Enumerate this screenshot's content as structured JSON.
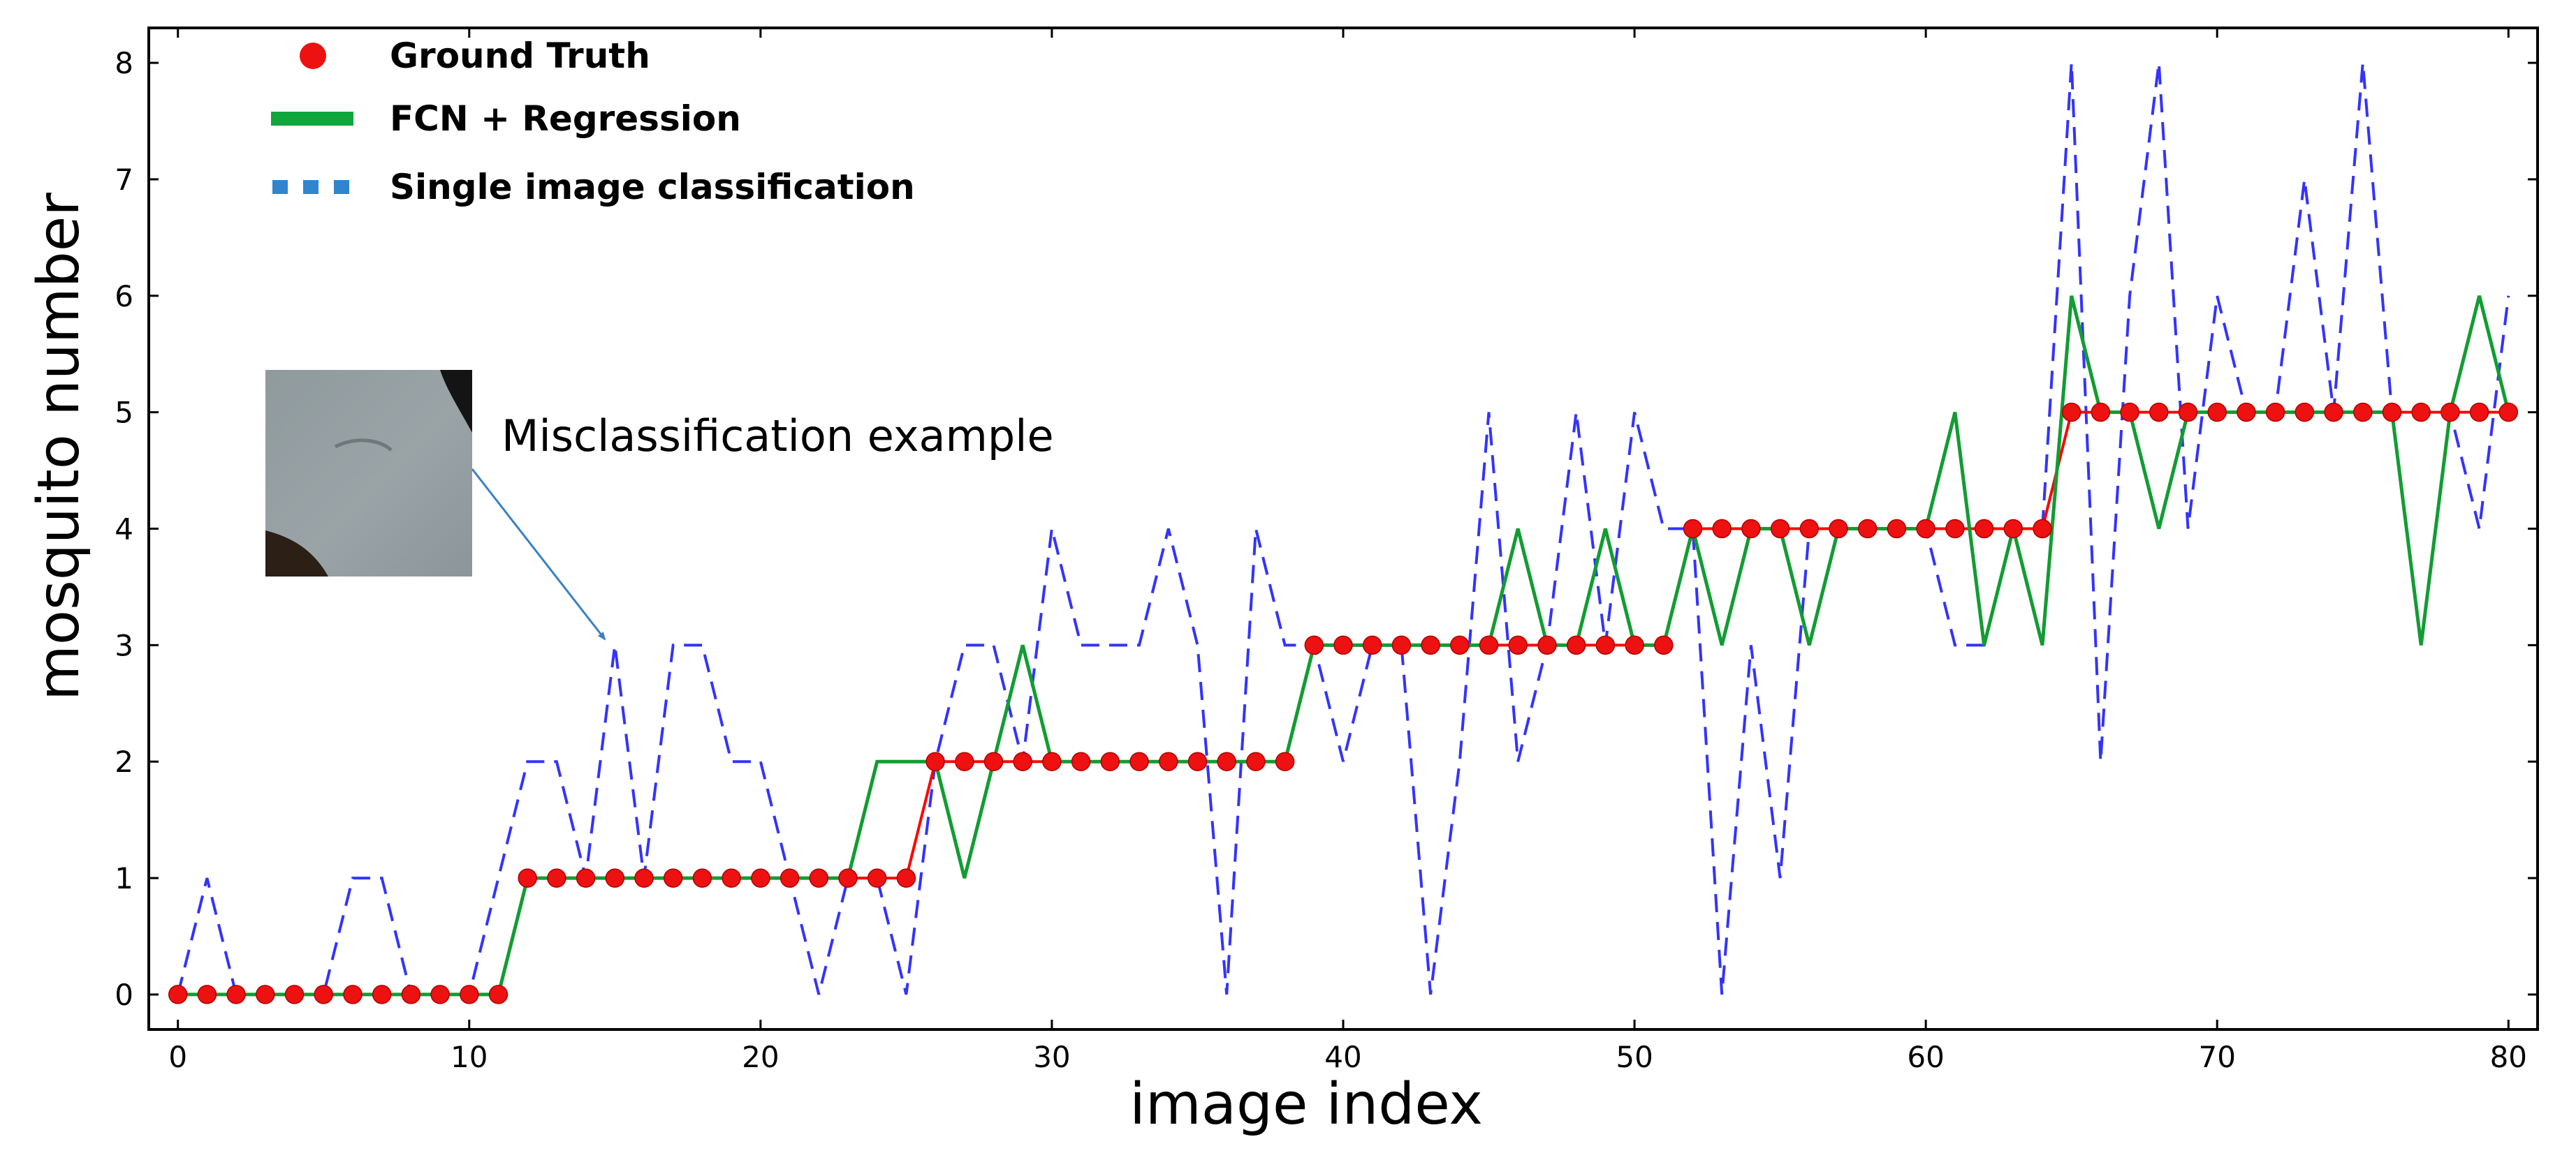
{
  "chart_data": {
    "type": "line",
    "xlabel": "image index",
    "ylabel": "mosquito number",
    "xlim": [
      -1,
      81
    ],
    "ylim": [
      -0.3,
      8.3
    ],
    "x_ticks": [
      0,
      10,
      20,
      30,
      40,
      50,
      60,
      70,
      80
    ],
    "y_ticks": [
      0,
      1,
      2,
      3,
      4,
      5,
      6,
      7,
      8
    ],
    "grid": false,
    "legend_position": "top-left",
    "series": [
      {
        "name": "Ground Truth",
        "style": "red-line-with-dots",
        "color": "#ff0000",
        "marker_color": "#ee1111",
        "x": [
          0,
          1,
          2,
          3,
          4,
          5,
          6,
          7,
          8,
          9,
          10,
          11,
          12,
          13,
          14,
          15,
          16,
          17,
          18,
          19,
          20,
          21,
          22,
          23,
          24,
          25,
          26,
          27,
          28,
          29,
          30,
          31,
          32,
          33,
          34,
          35,
          36,
          37,
          38,
          39,
          40,
          41,
          42,
          43,
          44,
          45,
          46,
          47,
          48,
          49,
          50,
          51,
          52,
          53,
          54,
          55,
          56,
          57,
          58,
          59,
          60,
          61,
          62,
          63,
          64,
          65,
          66,
          67,
          68,
          69,
          70,
          71,
          72,
          73,
          74,
          75,
          76,
          77,
          78,
          79,
          80
        ],
        "y": [
          0,
          0,
          0,
          0,
          0,
          0,
          0,
          0,
          0,
          0,
          0,
          0,
          1,
          1,
          1,
          1,
          1,
          1,
          1,
          1,
          1,
          1,
          1,
          1,
          1,
          1,
          2,
          2,
          2,
          2,
          2,
          2,
          2,
          2,
          2,
          2,
          2,
          2,
          2,
          3,
          3,
          3,
          3,
          3,
          3,
          3,
          3,
          3,
          3,
          3,
          3,
          3,
          4,
          4,
          4,
          4,
          4,
          4,
          4,
          4,
          4,
          4,
          4,
          4,
          4,
          5,
          5,
          5,
          5,
          5,
          5,
          5,
          5,
          5,
          5,
          5,
          5,
          5,
          5,
          5,
          5
        ]
      },
      {
        "name": "FCN + Regression",
        "style": "solid",
        "color": "#129c33",
        "x": [
          0,
          1,
          2,
          3,
          4,
          5,
          6,
          7,
          8,
          9,
          10,
          11,
          12,
          13,
          14,
          15,
          16,
          17,
          18,
          19,
          20,
          21,
          22,
          23,
          24,
          25,
          26,
          27,
          28,
          29,
          30,
          31,
          32,
          33,
          34,
          35,
          36,
          37,
          38,
          39,
          40,
          41,
          42,
          43,
          44,
          45,
          46,
          47,
          48,
          49,
          50,
          51,
          52,
          53,
          54,
          55,
          56,
          57,
          58,
          59,
          60,
          61,
          62,
          63,
          64,
          65,
          66,
          67,
          68,
          69,
          70,
          71,
          72,
          73,
          74,
          75,
          76,
          77,
          78,
          79,
          80
        ],
        "y": [
          0,
          0,
          0,
          0,
          0,
          0,
          0,
          0,
          0,
          0,
          0,
          0,
          1,
          1,
          1,
          1,
          1,
          1,
          1,
          1,
          1,
          1,
          1,
          1,
          2,
          2,
          2,
          1,
          2,
          3,
          2,
          2,
          2,
          2,
          2,
          2,
          2,
          2,
          2,
          3,
          3,
          3,
          3,
          3,
          3,
          3,
          4,
          3,
          3,
          4,
          3,
          3,
          4,
          3,
          4,
          4,
          3,
          4,
          4,
          4,
          4,
          5,
          3,
          4,
          3,
          6,
          5,
          5,
          4,
          5,
          5,
          5,
          5,
          5,
          5,
          5,
          5,
          3,
          5,
          6,
          5
        ]
      },
      {
        "name": "Single image classification",
        "style": "dashed",
        "color": "#3333ff",
        "x": [
          0,
          1,
          2,
          3,
          4,
          5,
          6,
          7,
          8,
          9,
          10,
          11,
          12,
          13,
          14,
          15,
          16,
          17,
          18,
          19,
          20,
          21,
          22,
          23,
          24,
          25,
          26,
          27,
          28,
          29,
          30,
          31,
          32,
          33,
          34,
          35,
          36,
          37,
          38,
          39,
          40,
          41,
          42,
          43,
          44,
          45,
          46,
          47,
          48,
          49,
          50,
          51,
          52,
          53,
          54,
          55,
          56,
          57,
          58,
          59,
          60,
          61,
          62,
          63,
          64,
          65,
          66,
          67,
          68,
          69,
          70,
          71,
          72,
          73,
          74,
          75,
          76,
          77,
          78,
          79,
          80
        ],
        "y": [
          0,
          1,
          0,
          0,
          0,
          0,
          1,
          1,
          0,
          0,
          0,
          1,
          2,
          2,
          1,
          3,
          1,
          3,
          3,
          2,
          2,
          1,
          0,
          1,
          1,
          0,
          2,
          3,
          3,
          2,
          4,
          3,
          3,
          3,
          4,
          3,
          0,
          4,
          3,
          3,
          2,
          3,
          3,
          0,
          2,
          5,
          2,
          3,
          5,
          3,
          5,
          4,
          4,
          0,
          3,
          1,
          4,
          4,
          4,
          4,
          4,
          3,
          3,
          4,
          4,
          8,
          2,
          6,
          8,
          4,
          6,
          5,
          5,
          7,
          5,
          8,
          5,
          5,
          5,
          4,
          6
        ]
      }
    ],
    "annotations": [
      {
        "text": "Misclassification example",
        "x": 15,
        "y": 3
      }
    ]
  },
  "colors": {
    "axis": "#000000",
    "inset_image_base": "#97a1a4",
    "arrow": "#3b7fc4",
    "legend_dash_blue": "#2f86cf",
    "legend_green": "#0fa63c"
  }
}
